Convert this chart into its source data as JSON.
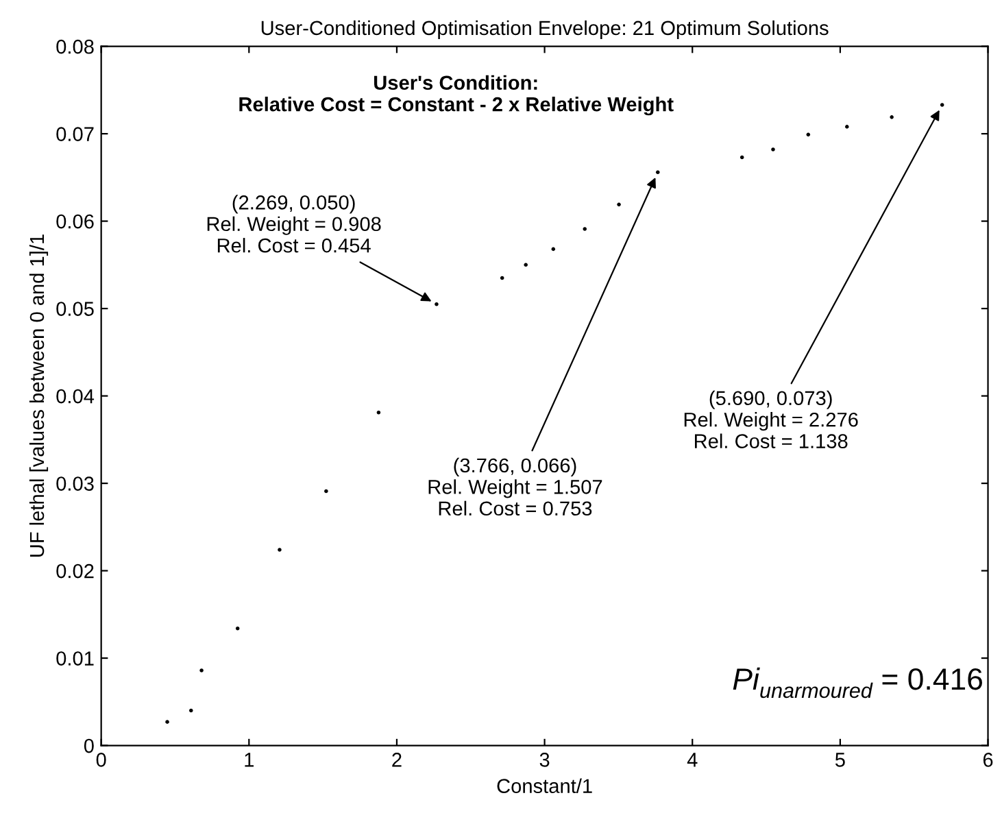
{
  "chart_data": {
    "type": "scatter",
    "title": "User-Conditioned Optimisation Envelope: 21 Optimum Solutions",
    "xlabel": "Constant/1",
    "ylabel": "UF lethal [values between 0 and 1]/1",
    "x": [
      0.447,
      0.608,
      0.679,
      0.923,
      1.207,
      1.522,
      1.877,
      2.269,
      2.713,
      2.873,
      3.059,
      3.272,
      3.503,
      3.766,
      4.336,
      4.546,
      4.784,
      5.046,
      5.349,
      5.69
    ],
    "values": [
      0.0027,
      0.004,
      0.0086,
      0.0134,
      0.0224,
      0.0291,
      0.0381,
      0.0505,
      0.0535,
      0.055,
      0.0568,
      0.0591,
      0.0619,
      0.0656,
      0.0673,
      0.0682,
      0.0699,
      0.0708,
      0.0719,
      0.0733
    ],
    "color": "#000000",
    "marker": "circle",
    "grid": false,
    "legend": false,
    "xlim": [
      0,
      6
    ],
    "xticks": [
      0,
      1,
      2,
      3,
      4,
      5,
      6
    ],
    "ylim": [
      0,
      0.08
    ],
    "yticks": [
      0,
      0.01,
      0.02,
      0.03,
      0.04,
      0.05,
      0.06,
      0.07,
      0.08
    ],
    "annotations": [
      "User's Condition:\nRelative Cost = Constant - 2 x Relative Weight",
      {
        "text": "(2.269, 0.050)\nRel. Weight = 0.908\nRel. Cost = 0.454",
        "x": 2.269,
        "y": 0.0505
      },
      {
        "text": "(3.766, 0.066)\nRel. Weight = 1.507\nRel. Cost = 0.753",
        "x": 3.766,
        "y": 0.0656
      },
      {
        "text": "(5.690, 0.073)\nRel. Weight = 2.276\nRel. Cost = 1.138",
        "x": 5.69,
        "y": 0.0733
      },
      "Pi$_{unarmoured}$ = 0.416"
    ]
  }
}
